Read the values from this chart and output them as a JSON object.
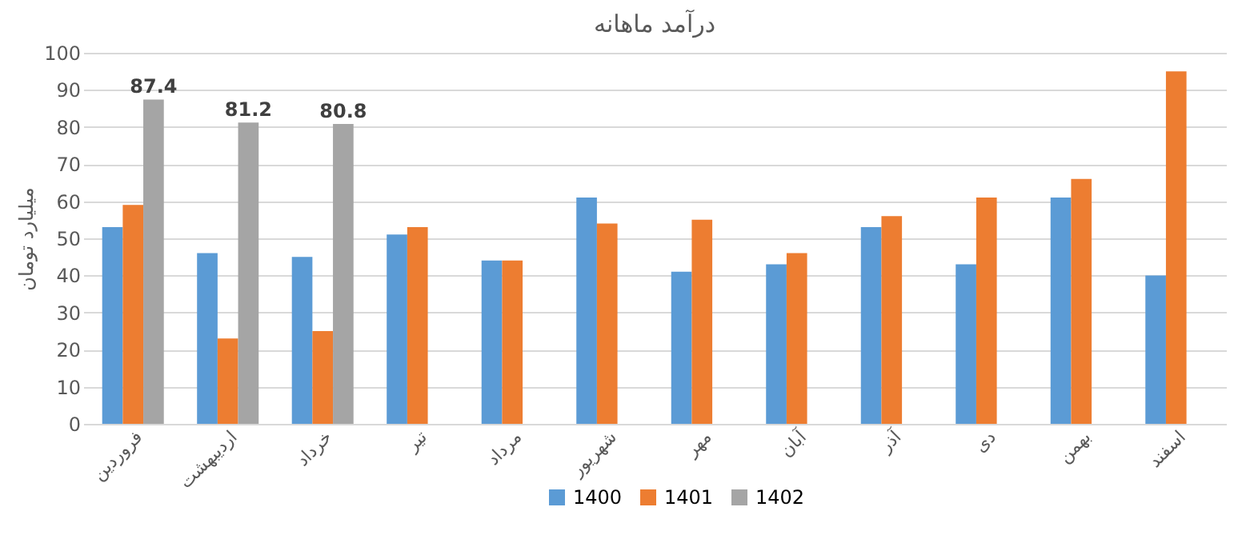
{
  "chart_data": {
    "type": "bar",
    "title": "درآمد ماهانه",
    "ylabel": "میلیارد تومان",
    "categories": [
      "فروردین",
      "اردیبهشت",
      "خرداد",
      "تیر",
      "مرداد",
      "شهریور",
      "مهر",
      "آبان",
      "آذر",
      "دی",
      "بهمن",
      "اسفند"
    ],
    "series": [
      {
        "name": "1400",
        "color": "#5b9bd5",
        "values": [
          53,
          46,
          45,
          51,
          44,
          61,
          41,
          43,
          53,
          43,
          61,
          40
        ]
      },
      {
        "name": "1401",
        "color": "#ed7d31",
        "values": [
          59,
          23,
          25,
          53,
          44,
          54,
          55,
          46,
          56,
          61,
          66,
          95
        ]
      },
      {
        "name": "1402",
        "color": "#a5a5a5",
        "values": [
          87.4,
          81.2,
          80.8,
          null,
          null,
          null,
          null,
          null,
          null,
          null,
          null,
          null
        ],
        "value_labels": [
          "87.4",
          "81.2",
          "80.8",
          null,
          null,
          null,
          null,
          null,
          null,
          null,
          null,
          null
        ]
      }
    ],
    "ylim": [
      0,
      100
    ],
    "yticks": [
      0,
      10,
      20,
      30,
      40,
      50,
      60,
      70,
      80,
      90,
      100
    ],
    "grid": "y",
    "legend": "bottom"
  }
}
